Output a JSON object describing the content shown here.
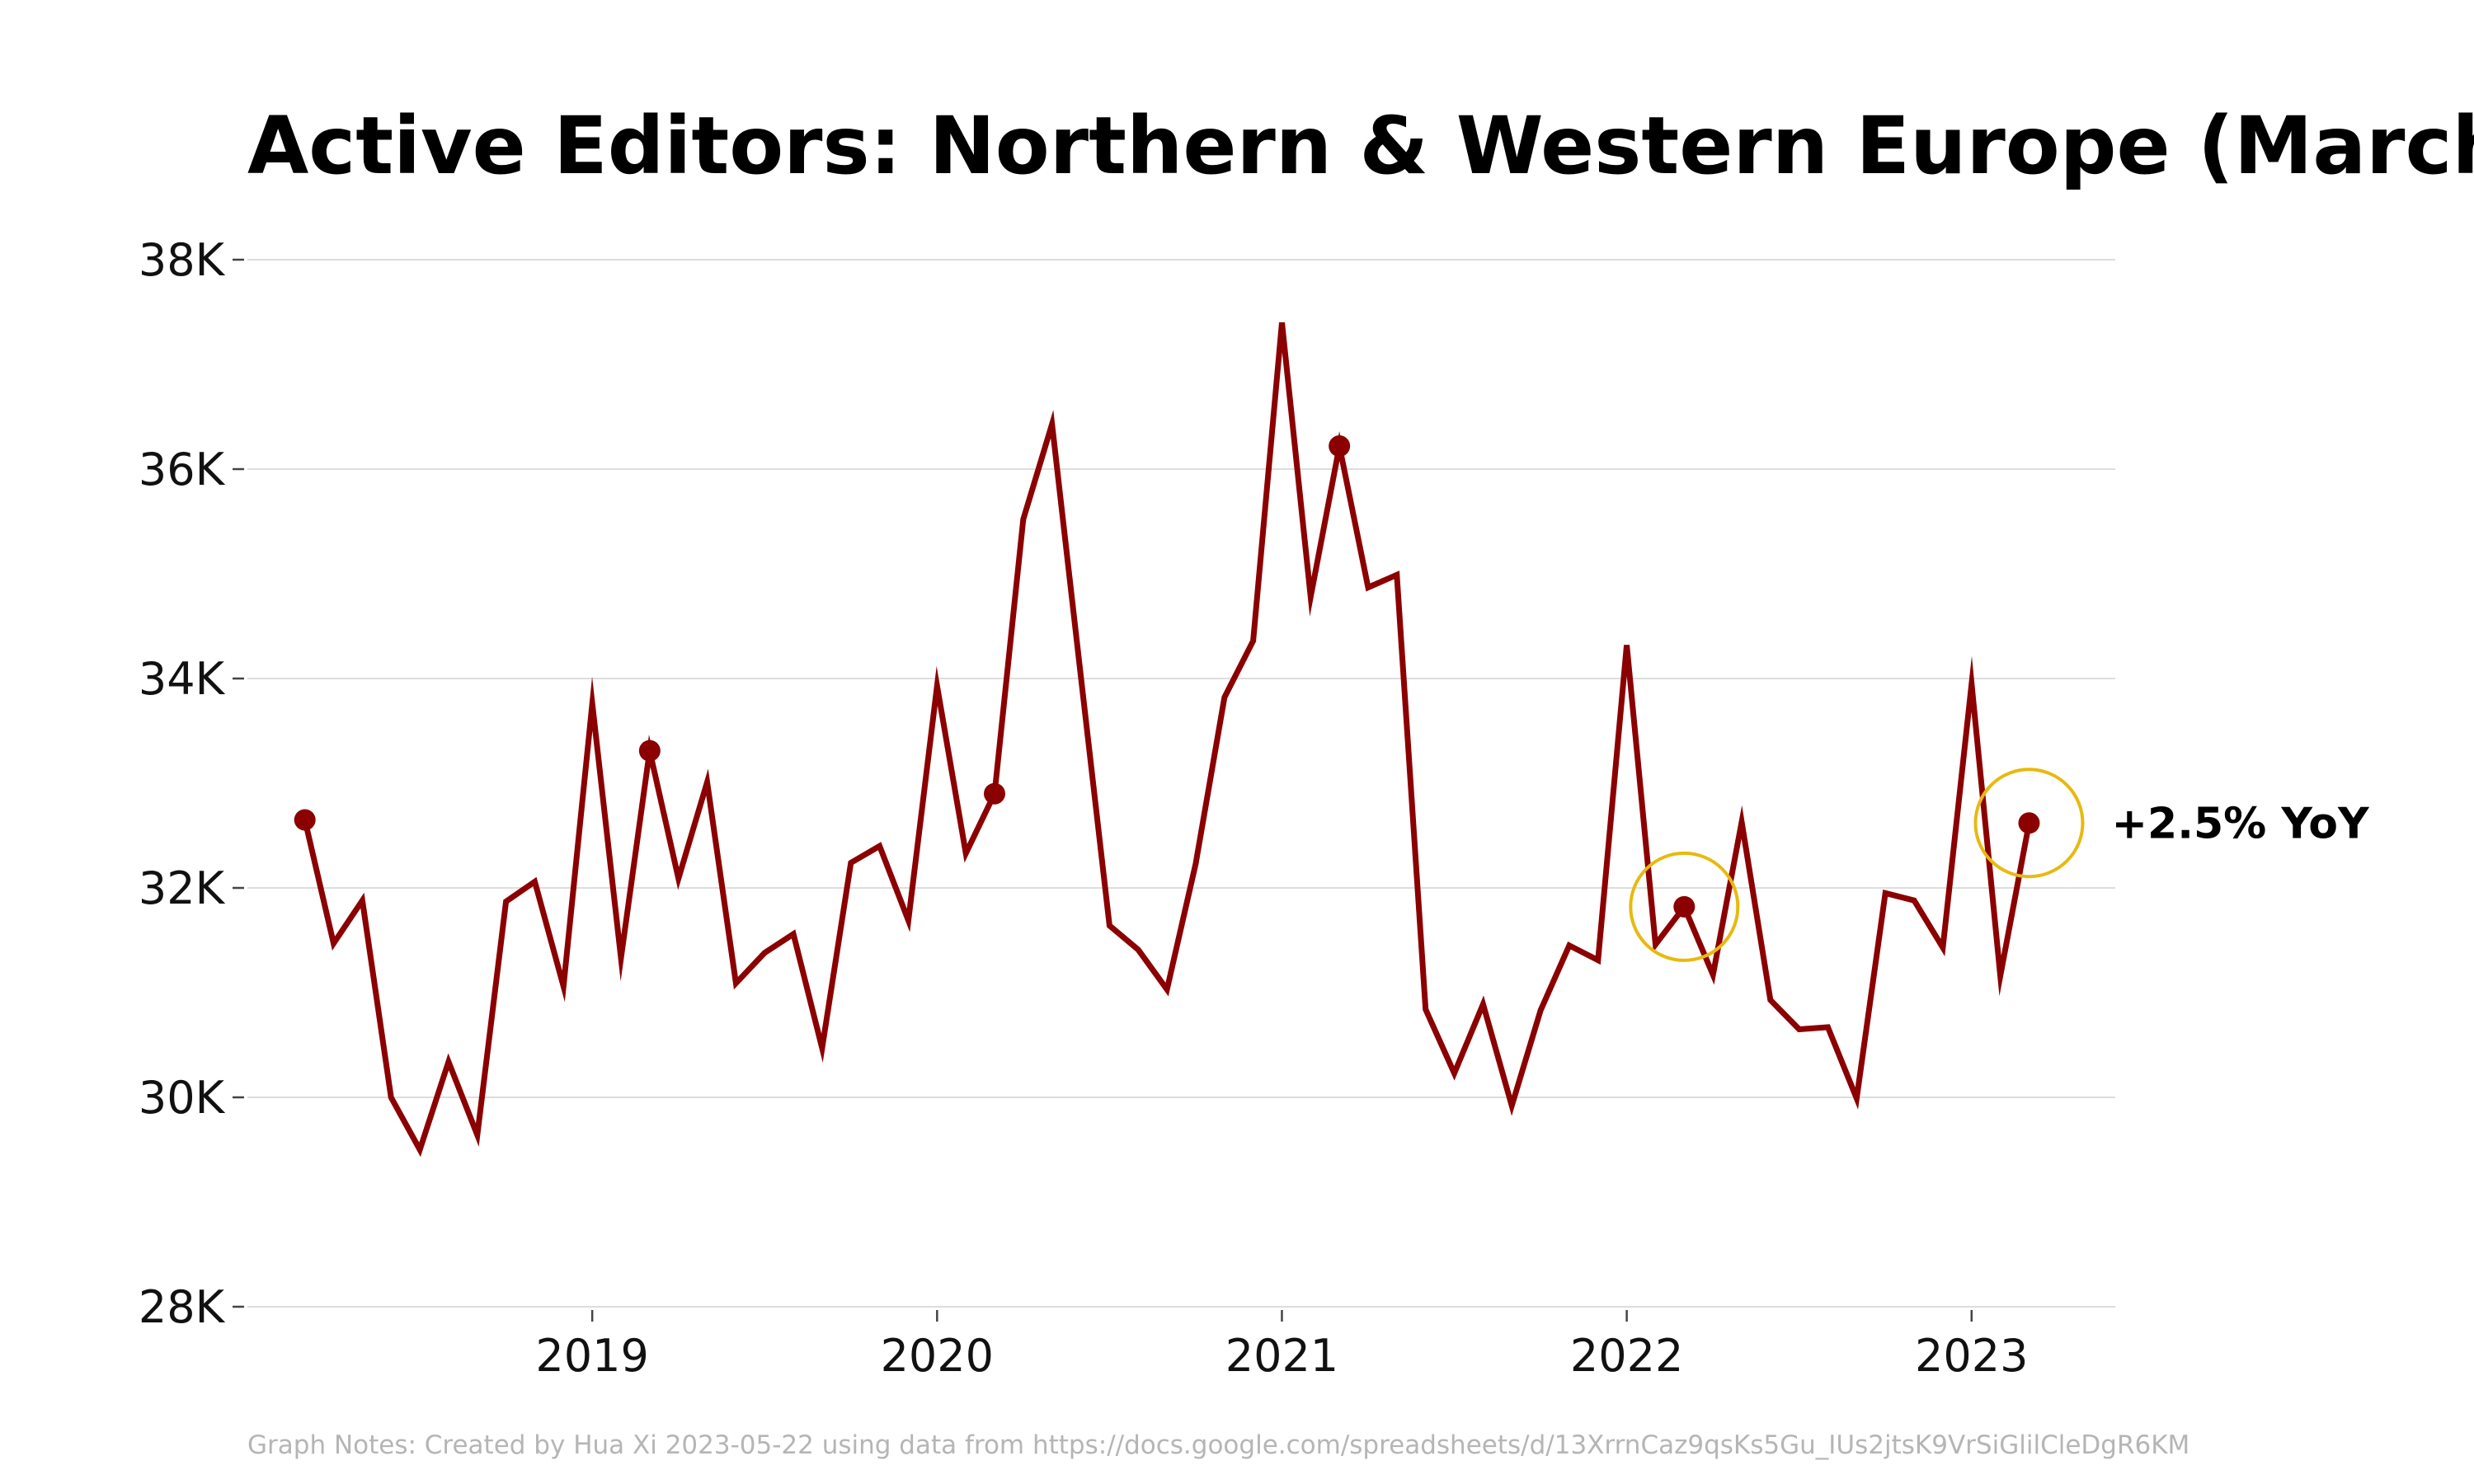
{
  "chart_data": {
    "type": "line",
    "title": "Active Editors: Northern & Western Europe (March)",
    "xlabel": "",
    "ylabel": "",
    "ylim": [
      28000,
      38000
    ],
    "xlim": [
      "2018-01",
      "2023-06"
    ],
    "y_ticks": [
      28000,
      30000,
      32000,
      34000,
      36000,
      38000
    ],
    "y_tick_labels": [
      "28K",
      "30K",
      "32K",
      "34K",
      "36K",
      "38K"
    ],
    "x_ticks": [
      "2019-01",
      "2020-01",
      "2021-01",
      "2022-01",
      "2023-01"
    ],
    "x_tick_labels": [
      "2019",
      "2020",
      "2021",
      "2022",
      "2023"
    ],
    "grid": true,
    "colors": {
      "line": "#8b0000",
      "highlight_circle": "#e8b90f"
    },
    "series": [
      {
        "x": [
          "2018-03",
          "2018-04",
          "2018-05",
          "2018-06",
          "2018-07",
          "2018-08",
          "2018-09",
          "2018-10",
          "2018-11",
          "2018-12",
          "2019-01",
          "2019-02",
          "2019-03",
          "2019-04",
          "2019-05",
          "2019-06",
          "2019-07",
          "2019-08",
          "2019-09",
          "2019-10",
          "2019-11",
          "2019-12",
          "2020-01",
          "2020-02",
          "2020-03",
          "2020-04",
          "2020-05",
          "2020-06",
          "2020-07",
          "2020-08",
          "2020-09",
          "2020-10",
          "2020-11",
          "2020-12",
          "2021-01",
          "2021-02",
          "2021-03",
          "2021-04",
          "2021-05",
          "2021-06",
          "2021-07",
          "2021-08",
          "2021-09",
          "2021-10",
          "2021-11",
          "2021-12",
          "2022-01",
          "2022-02",
          "2022-03",
          "2022-04",
          "2022-05",
          "2022-06",
          "2022-07",
          "2022-08",
          "2022-09",
          "2022-10",
          "2022-11",
          "2022-12",
          "2023-01",
          "2023-02",
          "2023-03"
        ],
        "values": [
          32650,
          31470,
          31880,
          30000,
          29500,
          30340,
          29640,
          31870,
          32060,
          31060,
          33760,
          31330,
          33310,
          32090,
          33010,
          31090,
          31380,
          31560,
          30470,
          32240,
          32400,
          31690,
          33930,
          32330,
          32900,
          35520,
          36430,
          34030,
          31640,
          31410,
          31030,
          32230,
          33820,
          34360,
          37400,
          34780,
          36220,
          34870,
          34990,
          30840,
          30230,
          30890,
          29920,
          30830,
          31450,
          31310,
          34320,
          31460,
          31820,
          31170,
          32630,
          30930,
          30650,
          30670,
          29990,
          31950,
          31880,
          31430,
          33950,
          31160,
          32620
        ]
      }
    ],
    "highlighted_points": [
      {
        "x": "2018-03",
        "y": 32650
      },
      {
        "x": "2019-03",
        "y": 33310
      },
      {
        "x": "2020-03",
        "y": 32900
      },
      {
        "x": "2021-03",
        "y": 36220
      },
      {
        "x": "2022-03",
        "y": 31820
      },
      {
        "x": "2023-03",
        "y": 32620
      }
    ],
    "circled_points": [
      "2022-03",
      "2023-03"
    ],
    "annotations": [
      {
        "text": "+2.5% YoY",
        "x": "2023-03",
        "y": 32620
      }
    ]
  },
  "footer": {
    "note": "Graph Notes: Created by Hua Xi 2023-05-22 using data from https://docs.google.com/spreadsheets/d/13XrrnCaz9qsKs5Gu_IUs2jtsK9VrSiGlilCleDgR6KM"
  }
}
